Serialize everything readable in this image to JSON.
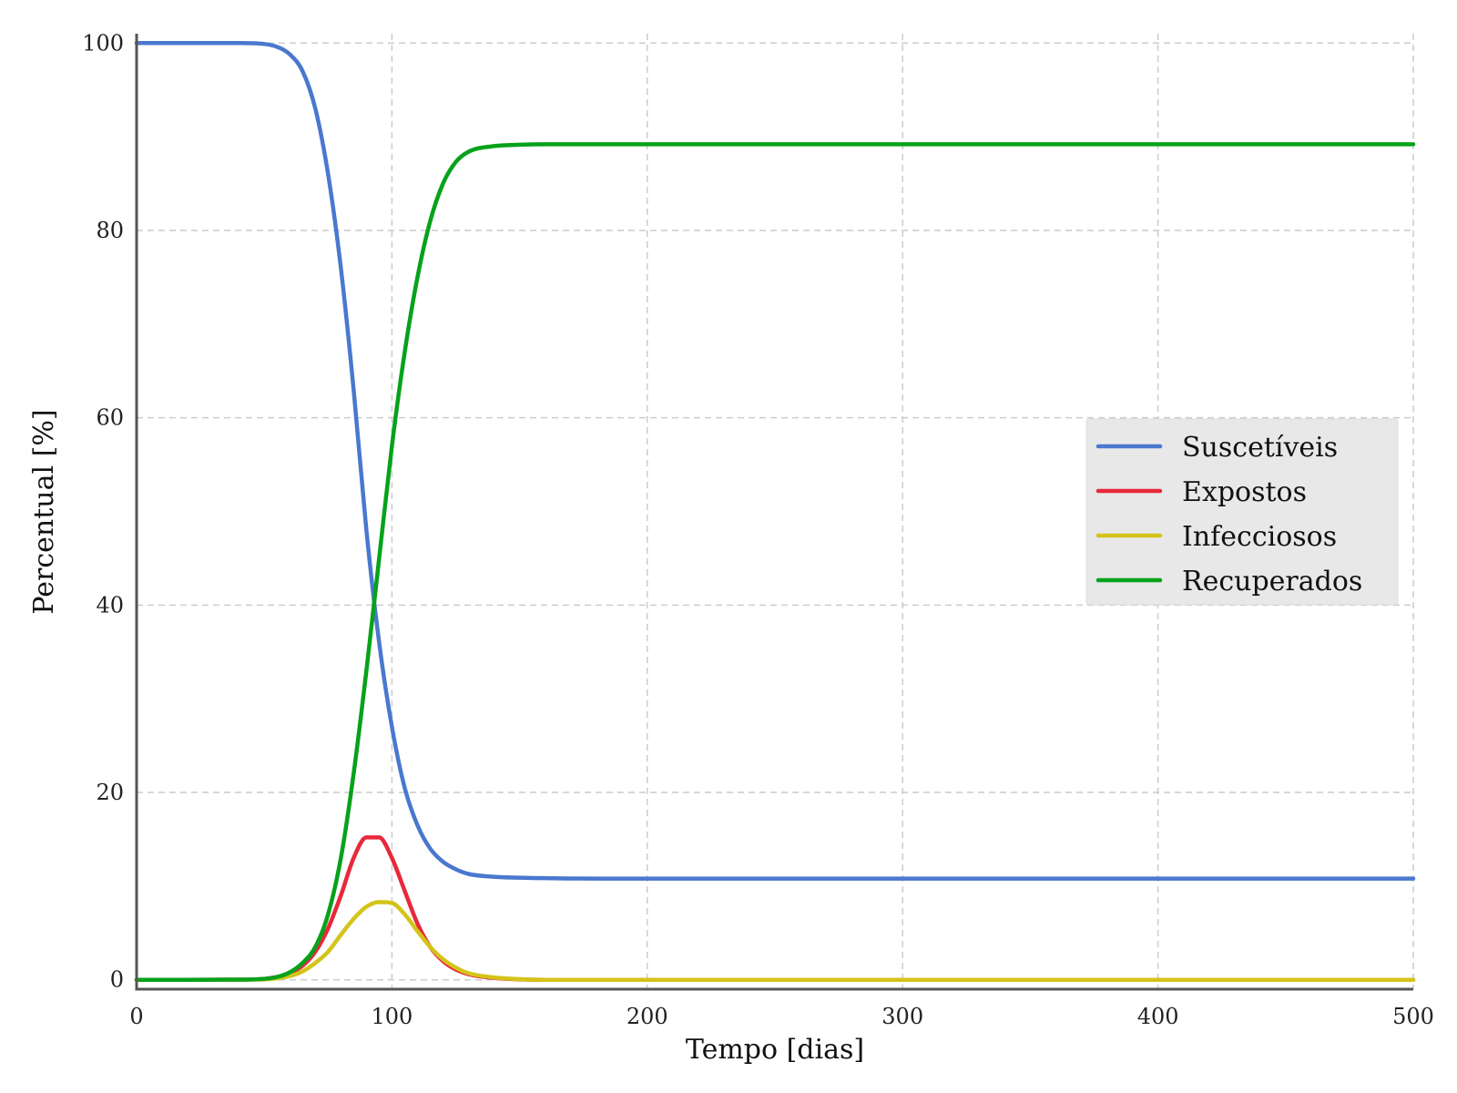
{
  "chart_data": {
    "type": "line",
    "xlabel": "Tempo [dias]",
    "ylabel": "Percentual [%]",
    "xlim": [
      0,
      500
    ],
    "ylim": [
      -1,
      101
    ],
    "xticks": [
      0,
      100,
      200,
      300,
      400,
      500
    ],
    "yticks": [
      0,
      20,
      40,
      60,
      80,
      100
    ],
    "grid": true,
    "legend_position": "center-right",
    "x": [
      0,
      20,
      40,
      50,
      55,
      60,
      65,
      70,
      75,
      80,
      85,
      90,
      95,
      100,
      105,
      110,
      115,
      120,
      125,
      130,
      140,
      150,
      160,
      180,
      200,
      250,
      300,
      400,
      500
    ],
    "series": [
      {
        "name": "Suscetíveis",
        "color": "#4a78cf",
        "values": [
          100,
          100,
          100,
          99.9,
          99.6,
          98.8,
          97,
          93,
          86,
          76,
          63,
          48,
          36,
          27,
          20.5,
          16.5,
          14,
          12.6,
          11.8,
          11.3,
          11,
          10.9,
          10.85,
          10.8,
          10.8,
          10.8,
          10.8,
          10.8,
          10.8
        ]
      },
      {
        "name": "Expostos",
        "color": "#e8283c",
        "values": [
          0,
          0,
          0.02,
          0.1,
          0.3,
          0.7,
          1.5,
          3,
          5.5,
          9,
          13,
          15.2,
          15.2,
          13,
          9.5,
          6,
          3.5,
          2,
          1.1,
          0.6,
          0.2,
          0.05,
          0,
          0,
          0,
          0,
          0,
          0,
          0
        ]
      },
      {
        "name": "Infecciosos",
        "color": "#d4c419",
        "values": [
          0,
          0,
          0.01,
          0.05,
          0.15,
          0.4,
          0.9,
          1.8,
          3,
          4.8,
          6.5,
          7.8,
          8.3,
          8.2,
          7,
          5.2,
          3.5,
          2.2,
          1.3,
          0.7,
          0.25,
          0.07,
          0,
          0,
          0,
          0,
          0,
          0,
          0
        ]
      },
      {
        "name": "Recuperados",
        "color": "#06a21a",
        "values": [
          0,
          0,
          0.02,
          0.1,
          0.3,
          0.8,
          1.8,
          3.5,
          7,
          13,
          22,
          33,
          45,
          57,
          67,
          75,
          81,
          85,
          87.3,
          88.4,
          89,
          89.15,
          89.2,
          89.2,
          89.2,
          89.2,
          89.2,
          89.2,
          89.2
        ]
      }
    ]
  }
}
